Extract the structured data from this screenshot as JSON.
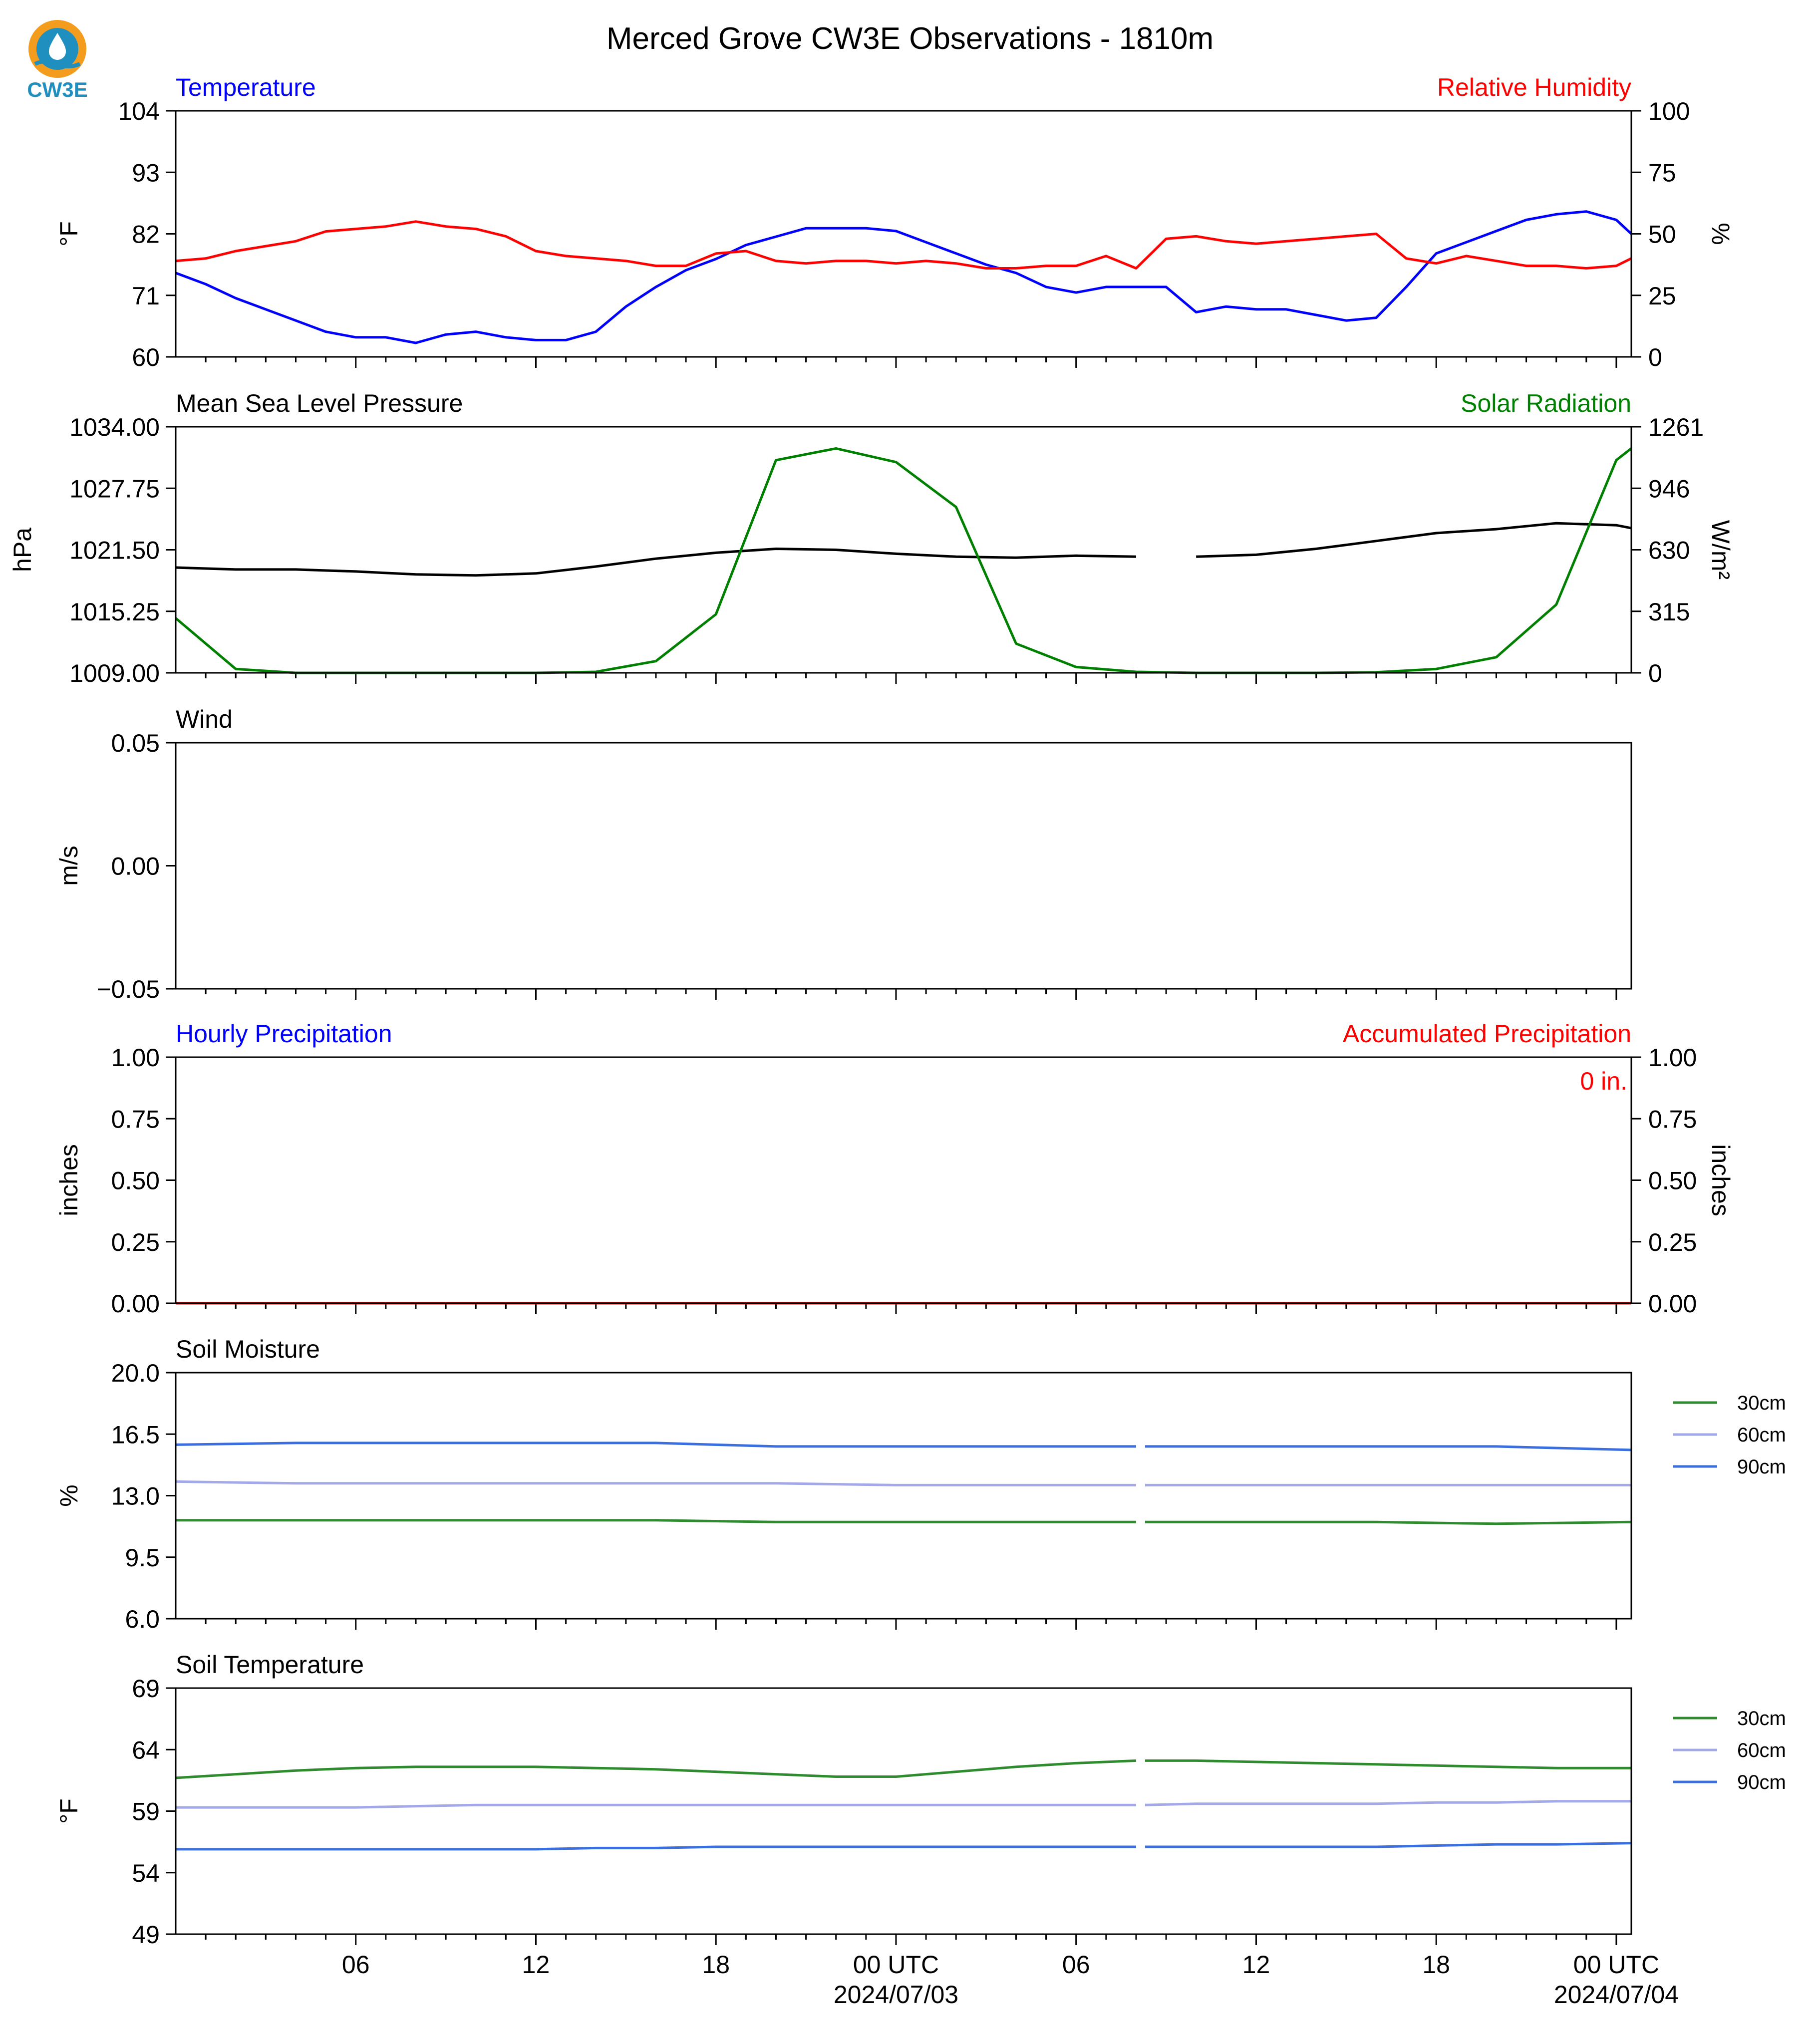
{
  "title": "Merced Grove CW3E Observations - 1810m",
  "logo": {
    "text": "CW3E",
    "icon": "cw3e-water-drop-logo",
    "color": "#1f8fc0",
    "accent": "#f39c1e"
  },
  "x_axis": {
    "tick_labels": [
      "06",
      "12",
      "18",
      "00 UTC",
      "06",
      "12",
      "18",
      "00 UTC"
    ],
    "date_labels": [
      "2024/07/03",
      "2024/07/04"
    ]
  },
  "chart_data": [
    {
      "id": "temperature_rh",
      "type": "line",
      "title_left": "Temperature",
      "title_right": "Relative Humidity",
      "ylabel": "°F",
      "ylabel_right": "%",
      "ylim": [
        60,
        104
      ],
      "yticks": [
        "60",
        "71",
        "82",
        "93",
        "104"
      ],
      "ylim_right": [
        0,
        100
      ],
      "yticks_right": [
        "0",
        "25",
        "50",
        "75",
        "100"
      ],
      "x_hours": [
        0,
        1,
        2,
        3,
        4,
        5,
        6,
        7,
        8,
        9,
        10,
        11,
        12,
        13,
        14,
        15,
        16,
        17,
        18,
        19,
        20,
        21,
        22,
        23,
        24,
        25,
        26,
        27,
        28,
        29,
        30,
        31,
        32,
        33,
        34,
        35,
        36,
        37,
        38,
        39,
        40,
        41,
        42,
        43,
        44,
        45,
        46,
        47,
        48,
        48.5
      ],
      "series": [
        {
          "name": "Temperature",
          "color": "#0000ff",
          "axis": "left",
          "values": [
            75,
            73,
            70.5,
            68.5,
            66.5,
            64.5,
            63.5,
            63.5,
            62.5,
            64,
            64.5,
            63.5,
            63,
            63,
            64.5,
            69,
            72.5,
            75.5,
            77.5,
            80,
            81.5,
            83,
            83,
            83,
            82.5,
            80.5,
            78.5,
            76.5,
            75,
            72.5,
            71.5,
            72.5,
            72.5,
            72.5,
            68,
            69,
            68.5,
            68.5,
            67.5,
            66.5,
            67,
            72.5,
            78.5,
            80.5,
            82.5,
            84.5,
            85.5,
            86,
            84.5,
            82
          ]
        },
        {
          "name": "Relative Humidity",
          "color": "#ff0000",
          "axis": "right",
          "values": [
            39,
            40,
            43,
            45,
            47,
            51,
            52,
            53,
            55,
            53,
            52,
            49,
            43,
            41,
            40,
            39,
            37,
            37,
            42,
            43,
            39,
            38,
            39,
            39,
            38,
            39,
            38,
            36,
            36,
            37,
            37,
            41,
            36,
            48,
            49,
            47,
            46,
            47,
            48,
            49,
            50,
            40,
            38,
            41,
            39,
            37,
            37,
            36,
            37,
            40
          ]
        }
      ]
    },
    {
      "id": "pressure_solar",
      "type": "line",
      "title_left": "Mean Sea Level Pressure",
      "title_right": "Solar Radiation",
      "ylabel": "hPa",
      "ylabel_right": "W/m²",
      "ylim": [
        1009,
        1034
      ],
      "yticks": [
        "1009.00",
        "1015.25",
        "1021.50",
        "1027.75",
        "1034.00"
      ],
      "ylim_right": [
        0,
        1261
      ],
      "yticks_right": [
        "0",
        "315",
        "630",
        "946",
        "1261"
      ],
      "x_hours": [
        0,
        2,
        4,
        6,
        8,
        10,
        12,
        14,
        16,
        18,
        20,
        22,
        24,
        26,
        28,
        30,
        32,
        34,
        36,
        38,
        40,
        42,
        44,
        46,
        48,
        48.5
      ],
      "series": [
        {
          "name": "Mean Sea Level Pressure",
          "color": "#000000",
          "axis": "left",
          "gap_after_hour": 32,
          "values": [
            1019.7,
            1019.5,
            1019.5,
            1019.3,
            1019,
            1018.9,
            1019.1,
            1019.8,
            1020.6,
            1021.2,
            1021.6,
            1021.5,
            1021.1,
            1020.8,
            1020.7,
            1020.9,
            1020.8,
            1020.8,
            1021,
            1021.6,
            1022.4,
            1023.2,
            1023.6,
            1024.2,
            1024,
            1023.7
          ]
        },
        {
          "name": "Solar Radiation",
          "color": "#008000",
          "axis": "right",
          "values": [
            280,
            20,
            0,
            0,
            0,
            0,
            0,
            5,
            60,
            300,
            1090,
            1150,
            1080,
            850,
            150,
            30,
            5,
            0,
            0,
            0,
            3,
            20,
            80,
            350,
            1090,
            1150
          ]
        }
      ]
    },
    {
      "id": "wind",
      "type": "line",
      "title_left": "Wind",
      "ylabel": "m/s",
      "ylim": [
        -0.055,
        0.055
      ],
      "yticks": [
        "−0.05",
        "0.00",
        "0.05"
      ],
      "series": []
    },
    {
      "id": "precipitation",
      "type": "line",
      "title_left": "Hourly Precipitation",
      "title_right": "Accumulated Precipitation",
      "ylabel": "inches",
      "ylabel_right": "inches",
      "ylim": [
        0,
        1
      ],
      "yticks": [
        "0.00",
        "0.25",
        "0.50",
        "0.75",
        "1.00"
      ],
      "ylim_right": [
        0,
        1
      ],
      "yticks_right": [
        "0.00",
        "0.25",
        "0.50",
        "0.75",
        "1.00"
      ],
      "annotation": "0 in.",
      "x_hours": [
        0,
        48.5
      ],
      "series": [
        {
          "name": "Hourly Precipitation",
          "color": "#0000ff",
          "axis": "left",
          "values": [
            0,
            0
          ]
        },
        {
          "name": "Accumulated Precipitation",
          "color": "#ff0000",
          "axis": "right",
          "values": [
            0,
            0
          ]
        }
      ]
    },
    {
      "id": "soil_moisture",
      "type": "line",
      "title_left": "Soil Moisture",
      "ylabel": "%",
      "ylim": [
        6,
        20
      ],
      "yticks": [
        "6.0",
        "9.5",
        "13.0",
        "16.5",
        "20.0"
      ],
      "legend_position": "right",
      "x_hours": [
        0,
        4,
        8,
        12,
        16,
        20,
        24,
        28,
        32,
        32.3,
        36,
        40,
        44,
        48.5
      ],
      "series": [
        {
          "name": "30cm",
          "color": "#2e8b2e",
          "gap_after_hour": 32,
          "values": [
            11.6,
            11.6,
            11.6,
            11.6,
            11.6,
            11.5,
            11.5,
            11.5,
            11.5,
            11.5,
            11.5,
            11.5,
            11.4,
            11.5
          ]
        },
        {
          "name": "60cm",
          "color": "#a3a8e8",
          "gap_after_hour": 32,
          "values": [
            13.8,
            13.7,
            13.7,
            13.7,
            13.7,
            13.7,
            13.6,
            13.6,
            13.6,
            13.6,
            13.6,
            13.6,
            13.6,
            13.6
          ]
        },
        {
          "name": "90cm",
          "color": "#3b6fe0",
          "gap_after_hour": 32,
          "values": [
            15.9,
            16.0,
            16.0,
            16.0,
            16.0,
            15.8,
            15.8,
            15.8,
            15.8,
            15.8,
            15.8,
            15.8,
            15.8,
            15.6
          ]
        }
      ]
    },
    {
      "id": "soil_temperature",
      "type": "line",
      "title_left": "Soil Temperature",
      "ylabel": "°F",
      "ylim": [
        49,
        69
      ],
      "yticks": [
        "49",
        "54",
        "59",
        "64",
        "69"
      ],
      "legend_position": "right",
      "x_hours": [
        0,
        2,
        4,
        6,
        8,
        10,
        12,
        14,
        16,
        18,
        20,
        22,
        24,
        26,
        28,
        30,
        32,
        32.3,
        34,
        36,
        38,
        40,
        42,
        44,
        46,
        48.5
      ],
      "series": [
        {
          "name": "30cm",
          "color": "#2e8b2e",
          "gap_after_hour": 32,
          "values": [
            61.7,
            62.0,
            62.3,
            62.5,
            62.6,
            62.6,
            62.6,
            62.5,
            62.4,
            62.2,
            62.0,
            61.8,
            61.8,
            62.2,
            62.6,
            62.9,
            63.1,
            63.1,
            63.1,
            63.0,
            62.9,
            62.8,
            62.7,
            62.6,
            62.5,
            62.5
          ]
        },
        {
          "name": "60cm",
          "color": "#a3a8e8",
          "gap_after_hour": 32,
          "values": [
            59.3,
            59.3,
            59.3,
            59.3,
            59.4,
            59.5,
            59.5,
            59.5,
            59.5,
            59.5,
            59.5,
            59.5,
            59.5,
            59.5,
            59.5,
            59.5,
            59.5,
            59.5,
            59.6,
            59.6,
            59.6,
            59.6,
            59.7,
            59.7,
            59.8,
            59.8
          ]
        },
        {
          "name": "90cm",
          "color": "#3b6fe0",
          "gap_after_hour": 32,
          "values": [
            55.9,
            55.9,
            55.9,
            55.9,
            55.9,
            55.9,
            55.9,
            56.0,
            56.0,
            56.1,
            56.1,
            56.1,
            56.1,
            56.1,
            56.1,
            56.1,
            56.1,
            56.1,
            56.1,
            56.1,
            56.1,
            56.1,
            56.2,
            56.3,
            56.3,
            56.4
          ]
        }
      ]
    }
  ]
}
